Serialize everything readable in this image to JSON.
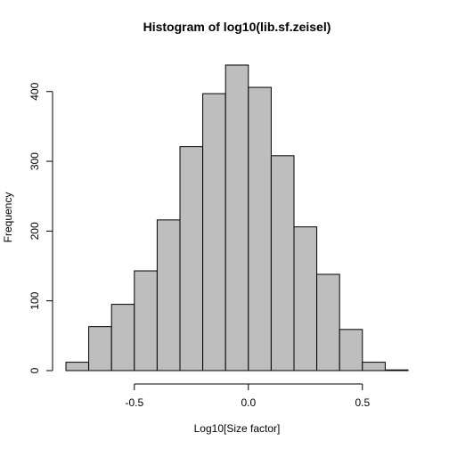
{
  "chart_data": {
    "type": "bar",
    "title": "Histogram of log10(lib.sf.zeisel)",
    "xlabel": "Log10[Size factor]",
    "ylabel": "Frequency",
    "bins": [
      {
        "x0": -0.8,
        "x1": -0.7,
        "count": 12
      },
      {
        "x0": -0.7,
        "x1": -0.6,
        "count": 63
      },
      {
        "x0": -0.6,
        "x1": -0.5,
        "count": 95
      },
      {
        "x0": -0.5,
        "x1": -0.4,
        "count": 143
      },
      {
        "x0": -0.4,
        "x1": -0.3,
        "count": 216
      },
      {
        "x0": -0.3,
        "x1": -0.2,
        "count": 321
      },
      {
        "x0": -0.2,
        "x1": -0.1,
        "count": 397
      },
      {
        "x0": -0.1,
        "x1": 0.0,
        "count": 438
      },
      {
        "x0": 0.0,
        "x1": 0.1,
        "count": 406
      },
      {
        "x0": 0.1,
        "x1": 0.2,
        "count": 308
      },
      {
        "x0": 0.2,
        "x1": 0.3,
        "count": 206
      },
      {
        "x0": 0.3,
        "x1": 0.4,
        "count": 138
      },
      {
        "x0": 0.4,
        "x1": 0.5,
        "count": 59
      },
      {
        "x0": 0.5,
        "x1": 0.6,
        "count": 12
      },
      {
        "x0": 0.6,
        "x1": 0.7,
        "count": 1
      }
    ],
    "xlim": [
      -0.8,
      0.7
    ],
    "ylim": [
      0,
      438
    ],
    "x_ticks": [
      -0.5,
      0.0,
      0.5
    ],
    "x_tick_labels": [
      "-0.5",
      "0.0",
      "0.5"
    ],
    "y_ticks": [
      0,
      100,
      200,
      300,
      400
    ],
    "y_tick_labels": [
      "0",
      "100",
      "200",
      "300",
      "400"
    ],
    "bar_fill": "#bebebe",
    "bar_stroke": "#000000",
    "grid": false,
    "legend": "none"
  }
}
